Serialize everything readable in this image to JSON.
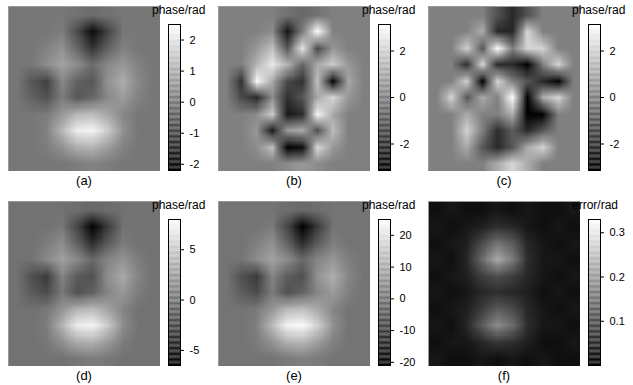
{
  "chart_data": [
    {
      "type": "heatmap",
      "title": "(a)",
      "colorbar_label": "phase/rad",
      "colorbar_range": [
        -2.2,
        2.5
      ],
      "colorbar_ticks": [
        -2,
        -1,
        0,
        1,
        2
      ],
      "cells": [
        [
          0,
          0,
          0,
          0,
          -0.1,
          -0.2,
          -0.1,
          0,
          0,
          0
        ],
        [
          0,
          0,
          0,
          0.1,
          -0.8,
          -2.0,
          -1.0,
          0,
          0,
          0
        ],
        [
          0,
          0,
          0.2,
          0.5,
          -0.3,
          -1.2,
          -0.4,
          0.2,
          0,
          0
        ],
        [
          0,
          0,
          0.4,
          0.8,
          0.4,
          -0.2,
          0.3,
          0.6,
          0.2,
          0
        ],
        [
          0,
          -0.6,
          -1.0,
          0.3,
          -0.4,
          -0.6,
          0.5,
          1.0,
          0.3,
          0
        ],
        [
          0,
          -0.4,
          -0.7,
          0.1,
          -0.6,
          -0.3,
          0.3,
          0.7,
          0.2,
          0
        ],
        [
          0,
          0,
          0.1,
          0.6,
          1.2,
          1.3,
          0.9,
          0.3,
          0,
          0
        ],
        [
          0,
          0,
          0.2,
          1.2,
          2.2,
          2.3,
          1.6,
          0.5,
          0,
          0
        ],
        [
          0,
          0,
          0.1,
          0.5,
          1.0,
          1.1,
          0.7,
          0.2,
          0,
          0
        ],
        [
          0,
          0,
          0,
          0,
          0.1,
          0.2,
          0.1,
          0,
          0,
          0
        ]
      ]
    },
    {
      "type": "heatmap",
      "title": "(b)",
      "colorbar_label": "phase/rad",
      "colorbar_range": [
        -3.14,
        3.14
      ],
      "colorbar_ticks": [
        -2,
        0,
        2
      ],
      "cells": [
        [
          0,
          0,
          0,
          0,
          -0.3,
          -0.6,
          -0.3,
          0,
          0,
          0
        ],
        [
          0,
          0,
          0,
          0.3,
          -2.6,
          -0.1,
          3.1,
          0,
          0,
          0
        ],
        [
          0,
          0,
          0.6,
          1.6,
          -1.0,
          2.5,
          -1.3,
          0.6,
          0,
          0
        ],
        [
          0,
          0,
          1.3,
          2.6,
          1.3,
          -0.6,
          1.0,
          1.9,
          0.6,
          0
        ],
        [
          0,
          -1.9,
          3.1,
          1.0,
          -1.3,
          -1.9,
          1.6,
          -3.1,
          1.0,
          0
        ],
        [
          0,
          -1.3,
          -2.2,
          0.3,
          -1.9,
          -1.0,
          1.0,
          2.2,
          0.6,
          0
        ],
        [
          0,
          0,
          0.3,
          1.9,
          -2.5,
          -2.1,
          2.9,
          1.0,
          0,
          0
        ],
        [
          0,
          0,
          0.6,
          -2.5,
          0.7,
          1.1,
          -1.2,
          1.6,
          0,
          0
        ],
        [
          0,
          0,
          0.3,
          1.6,
          -3.1,
          -2.8,
          2.2,
          0.6,
          0,
          0
        ],
        [
          0,
          0,
          0,
          0,
          0.3,
          0.6,
          0.3,
          0,
          0,
          0
        ]
      ]
    },
    {
      "type": "heatmap",
      "title": "(c)",
      "colorbar_label": "phase/rad",
      "colorbar_range": [
        -3.14,
        3.14
      ],
      "colorbar_ticks": [
        -2,
        0,
        2
      ],
      "cells": [
        [
          0,
          0,
          0,
          0,
          -1.1,
          -2.1,
          -1.1,
          0,
          0,
          0
        ],
        [
          0,
          0,
          0,
          1.1,
          -2.1,
          -2.2,
          2.1,
          0,
          0,
          0
        ],
        [
          0,
          0,
          2.1,
          -1.0,
          3.1,
          0.0,
          2.1,
          2.1,
          0,
          0
        ],
        [
          0,
          0,
          -2.1,
          2.1,
          -2.1,
          -2.1,
          -3.1,
          0.0,
          2.1,
          0
        ],
        [
          0,
          0.0,
          2.1,
          -3.1,
          2.1,
          0.0,
          -1.0,
          -2.1,
          -3.1,
          0
        ],
        [
          0,
          2.1,
          -1.1,
          1.1,
          0.0,
          3.1,
          -3.1,
          1.1,
          2.1,
          0
        ],
        [
          0,
          0,
          1.1,
          0.0,
          0.0,
          1.1,
          -3.1,
          -3.1,
          0,
          0
        ],
        [
          0,
          0,
          2.1,
          0.0,
          -2.0,
          -0.9,
          -2.1,
          -1.0,
          0,
          0
        ],
        [
          0,
          0,
          1.1,
          -1.0,
          -2.1,
          -1.0,
          1.1,
          2.1,
          0,
          0
        ],
        [
          0,
          0,
          0,
          0,
          1.1,
          2.1,
          1.1,
          0,
          0,
          0
        ]
      ]
    },
    {
      "type": "heatmap",
      "title": "(d)",
      "colorbar_label": "phase/rad",
      "colorbar_range": [
        -6.5,
        8
      ],
      "colorbar_ticks": [
        -5,
        0,
        5
      ],
      "cells": [
        [
          0,
          0,
          0,
          0,
          -0.3,
          -0.6,
          -0.3,
          0,
          0,
          0
        ],
        [
          0,
          0,
          0,
          0.3,
          -2.6,
          -6.4,
          -3.2,
          0,
          0,
          0
        ],
        [
          0,
          0,
          0.6,
          1.6,
          -1.0,
          -3.8,
          -1.3,
          0.6,
          0,
          0
        ],
        [
          0,
          0,
          1.3,
          2.6,
          1.3,
          -0.6,
          1.0,
          1.9,
          0.6,
          0
        ],
        [
          0,
          -1.9,
          -3.2,
          1.0,
          -1.3,
          -1.9,
          1.6,
          3.2,
          1.0,
          0
        ],
        [
          0,
          -1.3,
          -2.2,
          0.3,
          -1.9,
          -1.0,
          1.0,
          2.2,
          0.6,
          0
        ],
        [
          0,
          0,
          0.3,
          1.9,
          3.8,
          4.2,
          2.9,
          1.0,
          0,
          0
        ],
        [
          0,
          0,
          0.6,
          3.8,
          7.0,
          7.4,
          5.1,
          1.6,
          0,
          0
        ],
        [
          0,
          0,
          0.3,
          1.6,
          3.2,
          3.5,
          2.2,
          0.6,
          0,
          0
        ],
        [
          0,
          0,
          0,
          0,
          0.3,
          0.6,
          0.3,
          0,
          0,
          0
        ]
      ]
    },
    {
      "type": "heatmap",
      "title": "(e)",
      "colorbar_label": "phase/rad",
      "colorbar_range": [
        -21,
        25
      ],
      "colorbar_ticks": [
        -20,
        -10,
        0,
        10,
        20
      ],
      "cells": [
        [
          0,
          0,
          0,
          0,
          -1.1,
          -2.1,
          -1.1,
          0,
          0,
          0
        ],
        [
          0,
          0,
          0,
          1.1,
          -8.4,
          -21.0,
          -10.5,
          0,
          0,
          0
        ],
        [
          0,
          0,
          2.1,
          5.3,
          -3.2,
          -12.6,
          -4.2,
          2.1,
          0,
          0
        ],
        [
          0,
          0,
          4.2,
          8.4,
          4.2,
          -2.1,
          3.2,
          6.3,
          2.1,
          0
        ],
        [
          0,
          -6.3,
          -10.5,
          3.2,
          -4.2,
          -6.3,
          5.3,
          10.5,
          3.2,
          0
        ],
        [
          0,
          -4.2,
          -7.4,
          1.1,
          -6.3,
          -3.2,
          3.2,
          7.4,
          2.1,
          0
        ],
        [
          0,
          0,
          1.1,
          6.3,
          12.6,
          13.7,
          9.5,
          3.2,
          0,
          0
        ],
        [
          0,
          0,
          2.1,
          12.6,
          23.1,
          24.2,
          16.8,
          5.3,
          0,
          0
        ],
        [
          0,
          0,
          1.1,
          5.3,
          10.5,
          11.6,
          7.4,
          2.1,
          0,
          0
        ],
        [
          0,
          0,
          0,
          0,
          1.1,
          2.1,
          1.1,
          0,
          0,
          0
        ]
      ]
    },
    {
      "type": "heatmap",
      "title": "(f)",
      "colorbar_label": "error/rad",
      "colorbar_range": [
        0,
        0.33
      ],
      "colorbar_ticks": [
        0.1,
        0.2,
        0.3
      ],
      "cells": [
        [
          0.02,
          0.03,
          0.02,
          0.02,
          0.03,
          0.02,
          0.03,
          0.02,
          0.02,
          0.03
        ],
        [
          0.03,
          0.02,
          0.03,
          0.04,
          0.06,
          0.05,
          0.03,
          0.02,
          0.03,
          0.02
        ],
        [
          0.02,
          0.03,
          0.04,
          0.1,
          0.15,
          0.12,
          0.05,
          0.03,
          0.02,
          0.03
        ],
        [
          0.03,
          0.02,
          0.05,
          0.14,
          0.22,
          0.16,
          0.06,
          0.03,
          0.03,
          0.02
        ],
        [
          0.02,
          0.03,
          0.04,
          0.08,
          0.1,
          0.08,
          0.05,
          0.03,
          0.02,
          0.03
        ],
        [
          0.03,
          0.02,
          0.03,
          0.05,
          0.06,
          0.05,
          0.04,
          0.02,
          0.03,
          0.02
        ],
        [
          0.02,
          0.03,
          0.04,
          0.08,
          0.12,
          0.1,
          0.05,
          0.03,
          0.02,
          0.03
        ],
        [
          0.03,
          0.02,
          0.05,
          0.12,
          0.18,
          0.14,
          0.06,
          0.03,
          0.03,
          0.02
        ],
        [
          0.02,
          0.03,
          0.03,
          0.05,
          0.07,
          0.06,
          0.04,
          0.02,
          0.02,
          0.03
        ],
        [
          0.03,
          0.02,
          0.02,
          0.03,
          0.02,
          0.03,
          0.02,
          0.03,
          0.02,
          0.02
        ]
      ]
    }
  ]
}
